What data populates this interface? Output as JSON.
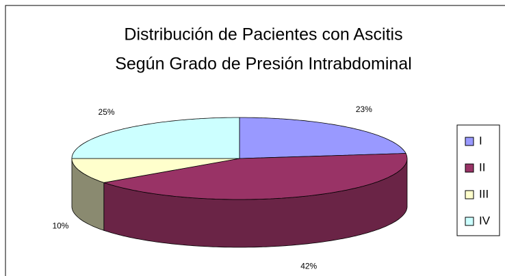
{
  "chart_data": {
    "type": "pie3d",
    "title": [
      "Distribución de Pacientes con Ascitis",
      "Según Grado de Presión Intrabdominal"
    ],
    "categories": [
      "I",
      "II",
      "III",
      "IV"
    ],
    "values": [
      23,
      42,
      10,
      25
    ],
    "value_labels": [
      "23%",
      "42%",
      "10%",
      "25%"
    ],
    "colors": [
      "#9999ff",
      "#993366",
      "#ffffcc",
      "#ccffff"
    ],
    "side_colors": [
      "#6666b0",
      "#6a2446",
      "#8a8a70",
      "#88aaaa"
    ],
    "legend": "right"
  }
}
